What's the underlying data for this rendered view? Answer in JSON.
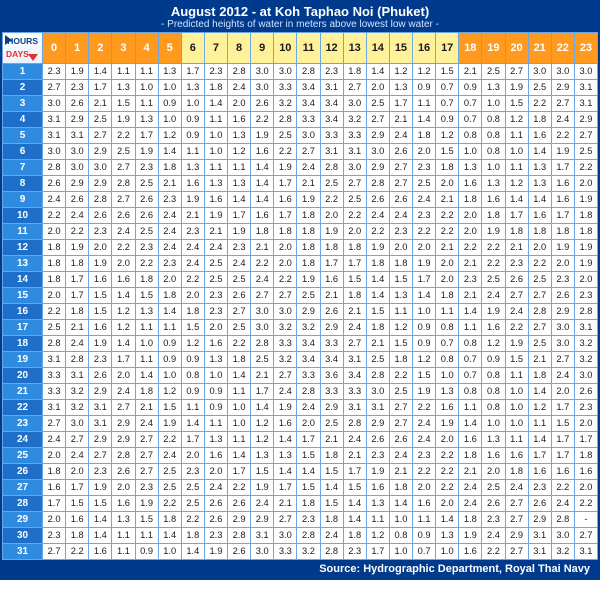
{
  "title": "August 2012 - at Koh Taphao Noi (Phuket)",
  "subtitle": "- Predicted heights of water in meters above lowest low water -",
  "footer": "Source: Hydrographic Department, Royal Thai Navy",
  "corner": {
    "hours_label": "HOURS",
    "days_label": "DAYS"
  },
  "colors": {
    "frame_bg": "#003a8c",
    "cell_border": "#6aa7e6",
    "hour_day_yellow_bg": "#fff09a",
    "hour_day_yellow_fg": "#1a1a1a",
    "hour_night_orange_bg": "#ff9a1f",
    "hour_night_orange_fg": "#ffffff",
    "day_colA_bg": "#2e8be0",
    "day_colB_bg": "#1e6fc9",
    "day_fg": "#ffffff"
  },
  "hours": [
    0,
    1,
    2,
    3,
    4,
    5,
    6,
    7,
    8,
    9,
    10,
    11,
    12,
    13,
    14,
    15,
    16,
    17,
    18,
    19,
    20,
    21,
    22,
    23
  ],
  "hour_is_day": [
    false,
    false,
    false,
    false,
    false,
    false,
    true,
    true,
    true,
    true,
    true,
    true,
    true,
    true,
    true,
    true,
    true,
    true,
    false,
    false,
    false,
    false,
    false,
    false
  ],
  "days": [
    1,
    2,
    3,
    4,
    5,
    6,
    7,
    8,
    9,
    10,
    11,
    12,
    13,
    14,
    15,
    16,
    17,
    18,
    19,
    20,
    21,
    22,
    23,
    24,
    25,
    26,
    27,
    28,
    29,
    30,
    31
  ],
  "data": [
    [
      "2.3",
      "1.9",
      "1.4",
      "1.1",
      "1.1",
      "1.3",
      "1.7",
      "2.3",
      "2.8",
      "3.0",
      "3.0",
      "2.8",
      "2.3",
      "1.8",
      "1.4",
      "1.2",
      "1.2",
      "1.5",
      "2.1",
      "2.5",
      "2.7",
      "3.0",
      "3.0",
      "3.0"
    ],
    [
      "2.7",
      "2.3",
      "1.7",
      "1.3",
      "1.0",
      "1.0",
      "1.3",
      "1.8",
      "2.4",
      "3.0",
      "3.3",
      "3.4",
      "3.1",
      "2.7",
      "2.0",
      "1.3",
      "0.9",
      "0.7",
      "0.9",
      "1.3",
      "1.9",
      "2.5",
      "2.9",
      "3.1"
    ],
    [
      "3.0",
      "2.6",
      "2.1",
      "1.5",
      "1.1",
      "0.9",
      "1.0",
      "1.4",
      "2.0",
      "2.6",
      "3.2",
      "3.4",
      "3.4",
      "3.0",
      "2.5",
      "1.7",
      "1.1",
      "0.7",
      "0.7",
      "1.0",
      "1.5",
      "2.2",
      "2.7",
      "3.1"
    ],
    [
      "3.1",
      "2.9",
      "2.5",
      "1.9",
      "1.3",
      "1.0",
      "0.9",
      "1.1",
      "1.6",
      "2.2",
      "2.8",
      "3.3",
      "3.4",
      "3.2",
      "2.7",
      "2.1",
      "1.4",
      "0.9",
      "0.7",
      "0.8",
      "1.2",
      "1.8",
      "2.4",
      "2.9"
    ],
    [
      "3.1",
      "3.1",
      "2.7",
      "2.2",
      "1.7",
      "1.2",
      "0.9",
      "1.0",
      "1.3",
      "1.9",
      "2.5",
      "3.0",
      "3.3",
      "3.3",
      "2.9",
      "2.4",
      "1.8",
      "1.2",
      "0.8",
      "0.8",
      "1.1",
      "1.6",
      "2.2",
      "2.7"
    ],
    [
      "3.0",
      "3.0",
      "2.9",
      "2.5",
      "1.9",
      "1.4",
      "1.1",
      "1.0",
      "1.2",
      "1.6",
      "2.2",
      "2.7",
      "3.1",
      "3.1",
      "3.0",
      "2.6",
      "2.0",
      "1.5",
      "1.0",
      "0.8",
      "1.0",
      "1.4",
      "1.9",
      "2.5"
    ],
    [
      "2.8",
      "3.0",
      "3.0",
      "2.7",
      "2.3",
      "1.8",
      "1.3",
      "1.1",
      "1.1",
      "1.4",
      "1.9",
      "2.4",
      "2.8",
      "3.0",
      "2.9",
      "2.7",
      "2.3",
      "1.8",
      "1.3",
      "1.0",
      "1.1",
      "1.3",
      "1.7",
      "2.2"
    ],
    [
      "2.6",
      "2.9",
      "2.9",
      "2.8",
      "2.5",
      "2.1",
      "1.6",
      "1.3",
      "1.3",
      "1.4",
      "1.7",
      "2.1",
      "2.5",
      "2.7",
      "2.8",
      "2.7",
      "2.5",
      "2.0",
      "1.6",
      "1.3",
      "1.2",
      "1.3",
      "1.6",
      "2.0"
    ],
    [
      "2.4",
      "2.6",
      "2.8",
      "2.7",
      "2.6",
      "2.3",
      "1.9",
      "1.6",
      "1.4",
      "1.4",
      "1.6",
      "1.9",
      "2.2",
      "2.5",
      "2.6",
      "2.6",
      "2.4",
      "2.1",
      "1.8",
      "1.6",
      "1.4",
      "1.4",
      "1.6",
      "1.9"
    ],
    [
      "2.2",
      "2.4",
      "2.6",
      "2.6",
      "2.6",
      "2.4",
      "2.1",
      "1.9",
      "1.7",
      "1.6",
      "1.7",
      "1.8",
      "2.0",
      "2.2",
      "2.4",
      "2.4",
      "2.3",
      "2.2",
      "2.0",
      "1.8",
      "1.7",
      "1.6",
      "1.7",
      "1.8"
    ],
    [
      "2.0",
      "2.2",
      "2.3",
      "2.4",
      "2.5",
      "2.4",
      "2.3",
      "2.1",
      "1.9",
      "1.8",
      "1.8",
      "1.8",
      "1.9",
      "2.0",
      "2.2",
      "2.3",
      "2.2",
      "2.2",
      "2.0",
      "1.9",
      "1.8",
      "1.8",
      "1.8",
      "1.8"
    ],
    [
      "1.8",
      "1.9",
      "2.0",
      "2.2",
      "2.3",
      "2.4",
      "2.4",
      "2.4",
      "2.3",
      "2.1",
      "2.0",
      "1.8",
      "1.8",
      "1.8",
      "1.9",
      "2.0",
      "2.0",
      "2.1",
      "2.2",
      "2.2",
      "2.1",
      "2.0",
      "1.9",
      "1.9"
    ],
    [
      "1.8",
      "1.8",
      "1.9",
      "2.0",
      "2.2",
      "2.3",
      "2.4",
      "2.5",
      "2.4",
      "2.2",
      "2.0",
      "1.8",
      "1.7",
      "1.7",
      "1.8",
      "1.8",
      "1.9",
      "2.0",
      "2.1",
      "2.2",
      "2.3",
      "2.2",
      "2.0",
      "1.9"
    ],
    [
      "1.8",
      "1.7",
      "1.6",
      "1.6",
      "1.8",
      "2.0",
      "2.2",
      "2.5",
      "2.5",
      "2.4",
      "2.2",
      "1.9",
      "1.6",
      "1.5",
      "1.4",
      "1.5",
      "1.7",
      "2.0",
      "2.3",
      "2.5",
      "2.6",
      "2.5",
      "2.3",
      "2.0"
    ],
    [
      "2.0",
      "1.7",
      "1.5",
      "1.4",
      "1.5",
      "1.8",
      "2.0",
      "2.3",
      "2.6",
      "2.7",
      "2.7",
      "2.5",
      "2.1",
      "1.8",
      "1.4",
      "1.3",
      "1.4",
      "1.8",
      "2.1",
      "2.4",
      "2.7",
      "2.7",
      "2.6",
      "2.3"
    ],
    [
      "2.2",
      "1.8",
      "1.5",
      "1.2",
      "1.3",
      "1.4",
      "1.8",
      "2.3",
      "2.7",
      "3.0",
      "3.0",
      "2.9",
      "2.6",
      "2.1",
      "1.5",
      "1.1",
      "1.0",
      "1.1",
      "1.4",
      "1.9",
      "2.4",
      "2.8",
      "2.9",
      "2.8"
    ],
    [
      "2.5",
      "2.1",
      "1.6",
      "1.2",
      "1.1",
      "1.1",
      "1.5",
      "2.0",
      "2.5",
      "3.0",
      "3.2",
      "3.2",
      "2.9",
      "2.4",
      "1.8",
      "1.2",
      "0.9",
      "0.8",
      "1.1",
      "1.6",
      "2.2",
      "2.7",
      "3.0",
      "3.1"
    ],
    [
      "2.8",
      "2.4",
      "1.9",
      "1.4",
      "1.0",
      "0.9",
      "1.2",
      "1.6",
      "2.2",
      "2.8",
      "3.3",
      "3.4",
      "3.3",
      "2.7",
      "2.1",
      "1.5",
      "0.9",
      "0.7",
      "0.8",
      "1.2",
      "1.9",
      "2.5",
      "3.0",
      "3.2"
    ],
    [
      "3.1",
      "2.8",
      "2.3",
      "1.7",
      "1.1",
      "0.9",
      "0.9",
      "1.3",
      "1.8",
      "2.5",
      "3.2",
      "3.4",
      "3.4",
      "3.1",
      "2.5",
      "1.8",
      "1.2",
      "0.8",
      "0.7",
      "0.9",
      "1.5",
      "2.1",
      "2.7",
      "3.2"
    ],
    [
      "3.3",
      "3.1",
      "2.6",
      "2.0",
      "1.4",
      "1.0",
      "0.8",
      "1.0",
      "1.4",
      "2.1",
      "2.7",
      "3.3",
      "3.6",
      "3.4",
      "2.8",
      "2.2",
      "1.5",
      "1.0",
      "0.7",
      "0.8",
      "1.1",
      "1.8",
      "2.4",
      "3.0"
    ],
    [
      "3.3",
      "3.2",
      "2.9",
      "2.4",
      "1.8",
      "1.2",
      "0.9",
      "0.9",
      "1.1",
      "1.7",
      "2.4",
      "2.8",
      "3.3",
      "3.3",
      "3.0",
      "2.5",
      "1.9",
      "1.3",
      "0.8",
      "0.8",
      "1.0",
      "1.4",
      "2.0",
      "2.6"
    ],
    [
      "3.1",
      "3.2",
      "3.1",
      "2.7",
      "2.1",
      "1.5",
      "1.1",
      "0.9",
      "1.0",
      "1.4",
      "1.9",
      "2.4",
      "2.9",
      "3.1",
      "3.1",
      "2.7",
      "2.2",
      "1.6",
      "1.1",
      "0.8",
      "1.0",
      "1.2",
      "1.7",
      "2.3"
    ],
    [
      "2.7",
      "3.0",
      "3.1",
      "2.9",
      "2.4",
      "1.9",
      "1.4",
      "1.1",
      "1.0",
      "1.2",
      "1.6",
      "2.0",
      "2.5",
      "2.8",
      "2.9",
      "2.7",
      "2.4",
      "1.9",
      "1.4",
      "1.0",
      "1.0",
      "1.1",
      "1.5",
      "2.0"
    ],
    [
      "2.4",
      "2.7",
      "2.9",
      "2.9",
      "2.7",
      "2.2",
      "1.7",
      "1.3",
      "1.1",
      "1.2",
      "1.4",
      "1.7",
      "2.1",
      "2.4",
      "2.6",
      "2.6",
      "2.4",
      "2.0",
      "1.6",
      "1.3",
      "1.1",
      "1.4",
      "1.7",
      "1.7"
    ],
    [
      "2.0",
      "2.4",
      "2.7",
      "2.8",
      "2.7",
      "2.4",
      "2.0",
      "1.6",
      "1.4",
      "1.3",
      "1.3",
      "1.5",
      "1.8",
      "2.1",
      "2.3",
      "2.4",
      "2.3",
      "2.2",
      "1.8",
      "1.6",
      "1.6",
      "1.7",
      "1.7",
      "1.8"
    ],
    [
      "1.8",
      "2.0",
      "2.3",
      "2.6",
      "2.7",
      "2.5",
      "2.3",
      "2.0",
      "1.7",
      "1.5",
      "1.4",
      "1.4",
      "1.5",
      "1.7",
      "1.9",
      "2.1",
      "2.2",
      "2.2",
      "2.1",
      "2.0",
      "1.8",
      "1.6",
      "1.6",
      "1.6"
    ],
    [
      "1.6",
      "1.7",
      "1.9",
      "2.0",
      "2.3",
      "2.5",
      "2.5",
      "2.4",
      "2.2",
      "1.9",
      "1.7",
      "1.5",
      "1.4",
      "1.5",
      "1.6",
      "1.8",
      "2.0",
      "2.2",
      "2.4",
      "2.5",
      "2.4",
      "2.3",
      "2.2",
      "2.0"
    ],
    [
      "1.7",
      "1.5",
      "1.5",
      "1.6",
      "1.9",
      "2.2",
      "2.5",
      "2.6",
      "2.6",
      "2.4",
      "2.1",
      "1.8",
      "1.5",
      "1.4",
      "1.3",
      "1.4",
      "1.6",
      "2.0",
      "2.4",
      "2.6",
      "2.7",
      "2.6",
      "2.4",
      "2.2"
    ],
    [
      "2.0",
      "1.6",
      "1.4",
      "1.3",
      "1.5",
      "1.8",
      "2.2",
      "2.6",
      "2.9",
      "2.9",
      "2.7",
      "2.3",
      "1.8",
      "1.4",
      "1.1",
      "1.0",
      "1.1",
      "1.4",
      "1.8",
      "2.3",
      "2.7",
      "2.9",
      "2.8",
      "-"
    ],
    [
      "2.3",
      "1.8",
      "1.4",
      "1.1",
      "1.1",
      "1.4",
      "1.8",
      "2.3",
      "2.8",
      "3.1",
      "3.0",
      "2.8",
      "2.4",
      "1.8",
      "1.2",
      "0.8",
      "0.9",
      "1.3",
      "1.9",
      "2.4",
      "2.9",
      "3.1",
      "3.0",
      "2.7"
    ],
    [
      "2.7",
      "2.2",
      "1.6",
      "1.1",
      "0.9",
      "1.0",
      "1.4",
      "1.9",
      "2.6",
      "3.0",
      "3.3",
      "3.2",
      "2.8",
      "2.3",
      "1.7",
      "1.0",
      "0.7",
      "1.0",
      "1.6",
      "2.2",
      "2.7",
      "3.1",
      "3.2",
      "3.1"
    ]
  ]
}
